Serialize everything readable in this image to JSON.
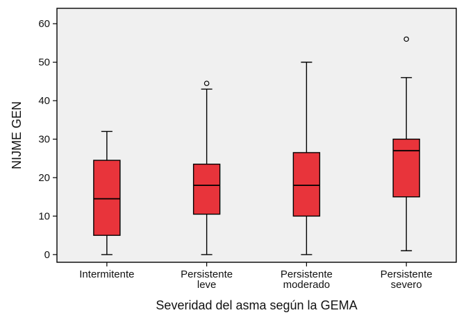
{
  "chart_data": {
    "type": "boxplot",
    "xlabel": "Severidad del asma según la GEMA",
    "ylabel": "NIJME GEN",
    "ylim": [
      -2,
      64
    ],
    "yticks": [
      0,
      10,
      20,
      30,
      40,
      50,
      60
    ],
    "grid": false,
    "plot_background": "#f0f0f0",
    "box_color": "#e8343b",
    "categories": [
      {
        "label_lines": [
          "Intermitente"
        ],
        "min": 0,
        "q1": 5,
        "median": 14.5,
        "q3": 24.5,
        "max": 32,
        "outliers": []
      },
      {
        "label_lines": [
          "Persistente",
          "leve"
        ],
        "min": 0,
        "q1": 10.5,
        "median": 18,
        "q3": 23.5,
        "max": 43,
        "outliers": [
          44.5
        ]
      },
      {
        "label_lines": [
          "Persistente",
          "moderado"
        ],
        "min": 0,
        "q1": 10,
        "median": 18,
        "q3": 26.5,
        "max": 50,
        "outliers": []
      },
      {
        "label_lines": [
          "Persistente",
          "severo"
        ],
        "min": 1,
        "q1": 15,
        "median": 27,
        "q3": 30,
        "max": 46,
        "outliers": [
          56
        ]
      }
    ]
  }
}
